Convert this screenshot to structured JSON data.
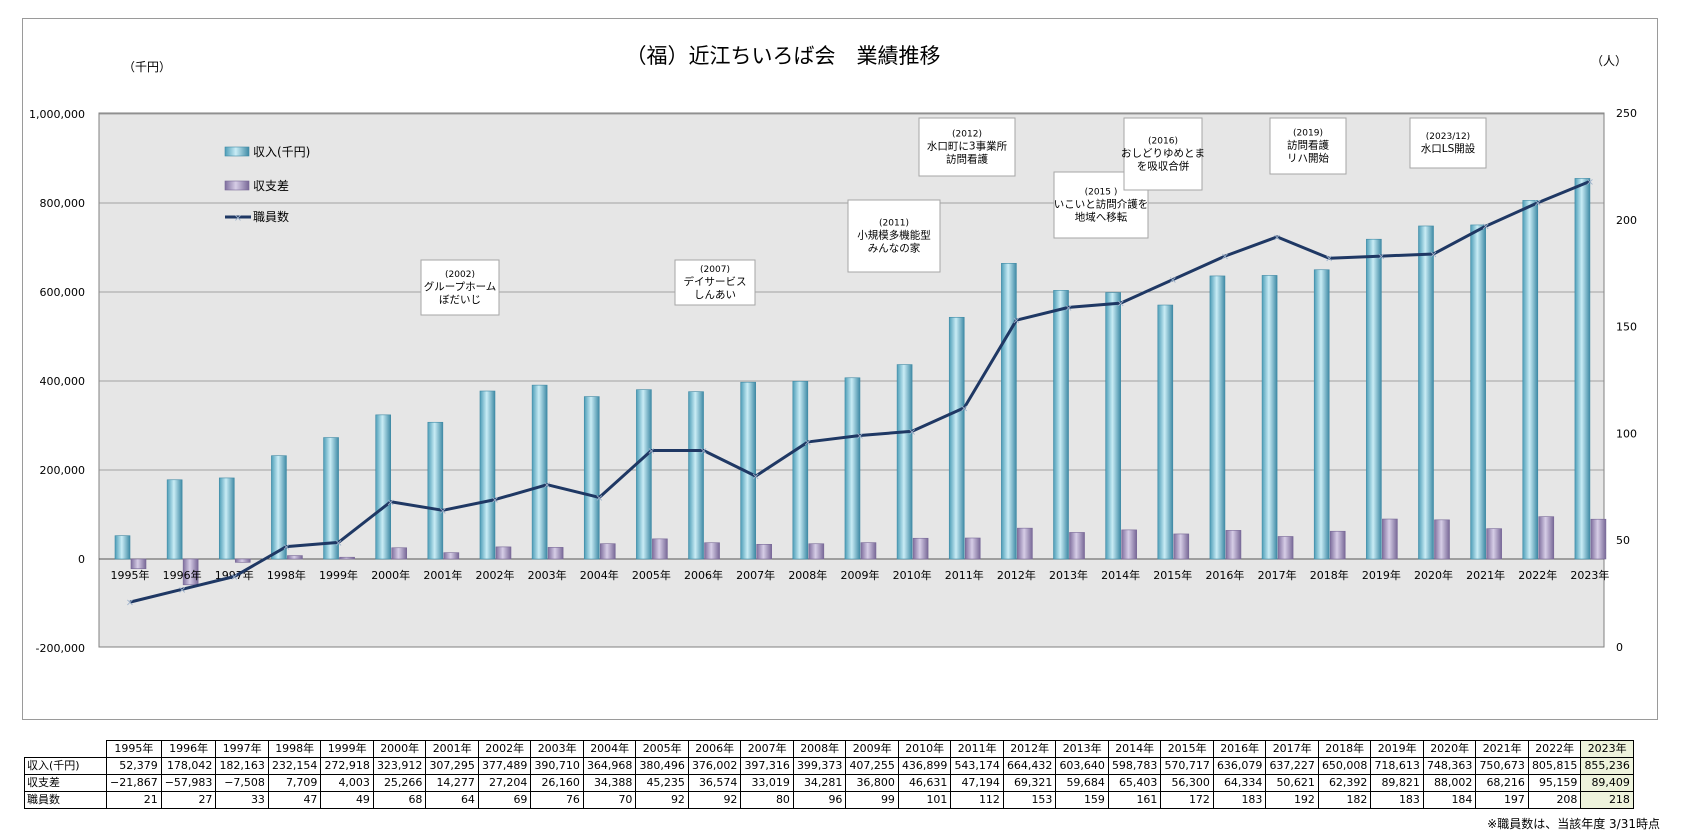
{
  "chart_data": {
    "type": "bar",
    "title": "（福）近江ちいろば会　業績推移",
    "left_unit": "（千円）",
    "right_unit": "（人）",
    "categories": [
      "1995年",
      "1996年",
      "1997年",
      "1998年",
      "1999年",
      "2000年",
      "2001年",
      "2002年",
      "2003年",
      "2004年",
      "2005年",
      "2006年",
      "2007年",
      "2008年",
      "2009年",
      "2010年",
      "2011年",
      "2012年",
      "2013年",
      "2014年",
      "2015年",
      "2016年",
      "2017年",
      "2018年",
      "2019年",
      "2020年",
      "2021年",
      "2022年",
      "2023年"
    ],
    "series": [
      {
        "name": "収入(千円)",
        "axis": "left",
        "type": "bar",
        "color": "#7fc8dc",
        "values": [
          52379,
          178042,
          182163,
          232154,
          272918,
          323912,
          307295,
          377489,
          390710,
          364968,
          380496,
          376002,
          397316,
          399373,
          407255,
          436899,
          543174,
          664432,
          603640,
          598783,
          570717,
          636079,
          637227,
          650008,
          718613,
          748363,
          750673,
          805815,
          855236
        ]
      },
      {
        "name": "収支差",
        "axis": "left",
        "type": "bar",
        "color": "#a99bbf",
        "values": [
          -21867,
          -57983,
          -7508,
          7709,
          4003,
          25266,
          14277,
          27204,
          26160,
          34388,
          45235,
          36574,
          33019,
          34281,
          36800,
          46631,
          47194,
          69321,
          59684,
          65403,
          56300,
          64334,
          50621,
          62392,
          89821,
          88002,
          68216,
          95159,
          89409
        ]
      },
      {
        "name": "職員数",
        "axis": "right",
        "type": "line",
        "color": "#1f3864",
        "values": [
          21,
          27,
          33,
          47,
          49,
          68,
          64,
          69,
          76,
          70,
          92,
          92,
          80,
          96,
          99,
          101,
          112,
          153,
          159,
          161,
          172,
          183,
          192,
          182,
          183,
          184,
          197,
          208,
          218
        ]
      }
    ],
    "left_axis": {
      "min": -200000,
      "max": 1000000,
      "ticks": [
        -200000,
        0,
        200000,
        400000,
        600000,
        800000,
        1000000
      ],
      "tick_labels": [
        "-200,000",
        "0",
        "200,000",
        "400,000",
        "600,000",
        "800,000",
        "1,000,000"
      ]
    },
    "right_axis": {
      "min": 0,
      "max": 250,
      "ticks": [
        0,
        50,
        100,
        150,
        200,
        250
      ],
      "tick_labels": [
        "0",
        "50",
        "100",
        "150",
        "200",
        "250"
      ]
    },
    "grid": true,
    "legend_position": "top-left",
    "annotations": [
      {
        "year_index": 7,
        "lines": [
          "(2002)",
          "グループホーム",
          "ぼだいじ"
        ]
      },
      {
        "year_index": 12,
        "lines": [
          "(2007)",
          "デイサービス",
          "しんあい"
        ]
      },
      {
        "year_index": 16,
        "lines": [
          "(2011)",
          "小規模多機能型",
          "みんなの家"
        ]
      },
      {
        "year_index": 17,
        "lines": [
          "(2012)",
          "水口町に3事業所",
          "訪問看護"
        ]
      },
      {
        "year_index": 20,
        "lines": [
          "(2015 )",
          "いこいと訪問介護を",
          "地域へ移転"
        ]
      },
      {
        "year_index": 21,
        "lines": [
          "(2016)",
          "おしどりゆめとま",
          "を吸収合併"
        ]
      },
      {
        "year_index": 24,
        "lines": [
          "(2019)",
          "訪問看護",
          "リハ開始"
        ]
      },
      {
        "year_index": 27,
        "lines": [
          "(2023/12)",
          "水口LS開設"
        ]
      }
    ]
  },
  "table": {
    "years": [
      "1995年",
      "1996年",
      "1997年",
      "1998年",
      "1999年",
      "2000年",
      "2001年",
      "2002年",
      "2003年",
      "2004年",
      "2005年",
      "2006年",
      "2007年",
      "2008年",
      "2009年",
      "2010年",
      "2011年",
      "2012年",
      "2013年",
      "2014年",
      "2015年",
      "2016年",
      "2017年",
      "2018年",
      "2019年",
      "2020年",
      "2021年",
      "2022年",
      "2023年"
    ],
    "rows": [
      {
        "label": "収入(千円)",
        "cells": [
          "52,379",
          "178,042",
          "182,163",
          "232,154",
          "272,918",
          "323,912",
          "307,295",
          "377,489",
          "390,710",
          "364,968",
          "380,496",
          "376,002",
          "397,316",
          "399,373",
          "407,255",
          "436,899",
          "543,174",
          "664,432",
          "603,640",
          "598,783",
          "570,717",
          "636,079",
          "637,227",
          "650,008",
          "718,613",
          "748,363",
          "750,673",
          "805,815",
          "855,236"
        ]
      },
      {
        "label": "収支差",
        "cells": [
          "−21,867",
          "−57,983",
          "−7,508",
          "7,709",
          "4,003",
          "25,266",
          "14,277",
          "27,204",
          "26,160",
          "34,388",
          "45,235",
          "36,574",
          "33,019",
          "34,281",
          "36,800",
          "46,631",
          "47,194",
          "69,321",
          "59,684",
          "65,403",
          "56,300",
          "64,334",
          "50,621",
          "62,392",
          "89,821",
          "88,002",
          "68,216",
          "95,159",
          "89,409"
        ]
      },
      {
        "label": "職員数",
        "cells": [
          "21",
          "27",
          "33",
          "47",
          "49",
          "68",
          "64",
          "69",
          "76",
          "70",
          "92",
          "92",
          "80",
          "96",
          "99",
          "101",
          "112",
          "153",
          "159",
          "161",
          "172",
          "183",
          "192",
          "182",
          "183",
          "184",
          "197",
          "208",
          "218"
        ]
      }
    ]
  },
  "footnote": "※職員数は、当該年度 3/31時点"
}
